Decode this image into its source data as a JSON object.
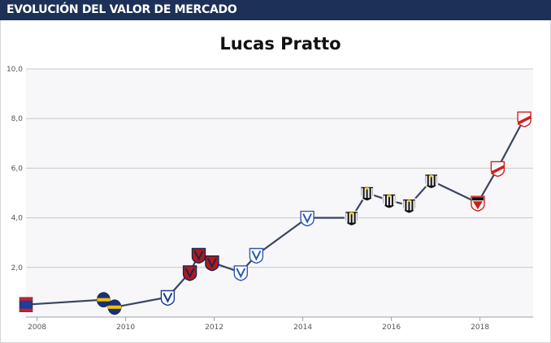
{
  "header": {
    "title": "Evolución del valor de mercado"
  },
  "colors": {
    "header_bg": "#1d3158",
    "plot_bg": "#f7f7f9",
    "line": "#3a4660",
    "grid": "#c8c8c8"
  },
  "chart_data": {
    "type": "line",
    "title": "Lucas Pratto",
    "xlabel": "",
    "ylabel": "",
    "xlim": [
      2007.75,
      2019.2
    ],
    "ylim": [
      0,
      10
    ],
    "grid": true,
    "x_ticks": [
      {
        "value": 2008,
        "label": "2008"
      },
      {
        "value": 2010,
        "label": "2010"
      },
      {
        "value": 2012,
        "label": "2012"
      },
      {
        "value": 2014,
        "label": "2014"
      },
      {
        "value": 2016,
        "label": "2016"
      },
      {
        "value": 2018,
        "label": "2018"
      }
    ],
    "y_ticks": [
      {
        "value": 2,
        "label": "2,0"
      },
      {
        "value": 4,
        "label": "4,0"
      },
      {
        "value": 6,
        "label": "6,0"
      },
      {
        "value": 8,
        "label": "8,0"
      },
      {
        "value": 10,
        "label": "10,0"
      }
    ],
    "series": [
      {
        "points": [
          {
            "x": 2007.75,
            "y": 0.5,
            "club": "tigre-crest"
          },
          {
            "x": 2009.5,
            "y": 0.7,
            "club": "boca-juniors-crest"
          },
          {
            "x": 2009.75,
            "y": 0.4,
            "club": "boca-juniors-crest"
          },
          {
            "x": 2010.95,
            "y": 0.8,
            "club": "universidad-catolica-crest"
          },
          {
            "x": 2011.45,
            "y": 1.8,
            "club": "genoa-crest"
          },
          {
            "x": 2011.65,
            "y": 2.5,
            "club": "genoa-crest"
          },
          {
            "x": 2011.95,
            "y": 2.2,
            "club": "genoa-crest"
          },
          {
            "x": 2012.6,
            "y": 1.8,
            "club": "velez-sarsfield-crest"
          },
          {
            "x": 2012.95,
            "y": 2.5,
            "club": "velez-sarsfield-crest"
          },
          {
            "x": 2014.1,
            "y": 4.0,
            "club": "velez-sarsfield-crest"
          },
          {
            "x": 2015.1,
            "y": 4.0,
            "club": "atletico-mineiro-crest"
          },
          {
            "x": 2015.45,
            "y": 5.0,
            "club": "atletico-mineiro-crest"
          },
          {
            "x": 2015.95,
            "y": 4.7,
            "club": "atletico-mineiro-crest"
          },
          {
            "x": 2016.4,
            "y": 4.5,
            "club": "atletico-mineiro-crest"
          },
          {
            "x": 2016.9,
            "y": 5.5,
            "club": "atletico-mineiro-crest"
          },
          {
            "x": 2017.95,
            "y": 4.6,
            "club": "sao-paulo-crest"
          },
          {
            "x": 2018.4,
            "y": 6.0,
            "club": "river-plate-crest"
          },
          {
            "x": 2019.0,
            "y": 8.0,
            "club": "river-plate-crest"
          }
        ]
      }
    ]
  }
}
